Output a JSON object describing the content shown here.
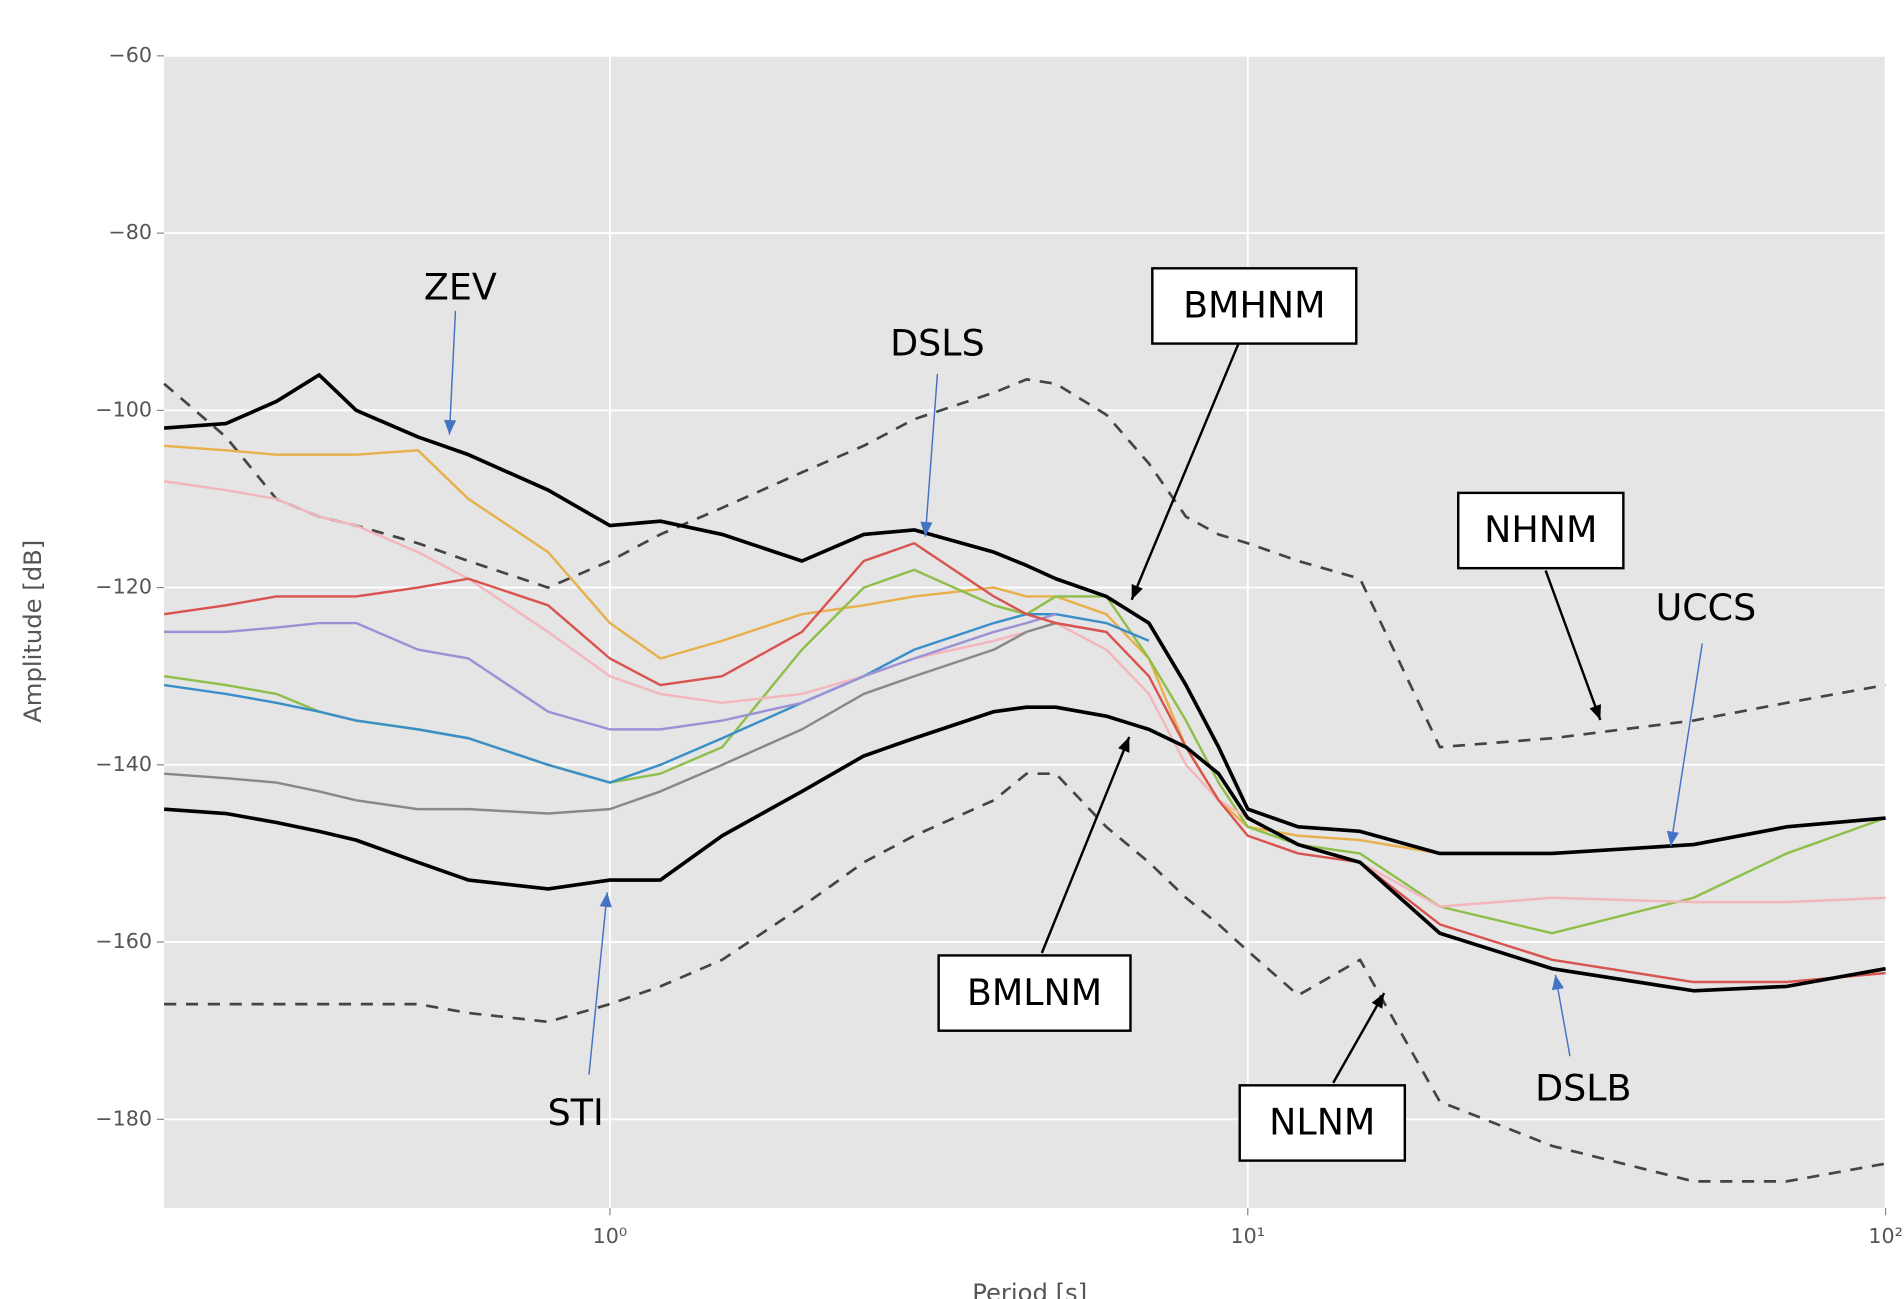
{
  "chart_data": {
    "type": "line",
    "x_label": "Period [s]",
    "y_label": "Amplitude [dB]",
    "x_scale": "log",
    "grid": true,
    "xlim": [
      0.2,
      100
    ],
    "ylim": [
      -190,
      -60
    ],
    "xticks": [
      {
        "value": 1,
        "label": "10⁰"
      },
      {
        "value": 10,
        "label": "10¹"
      },
      {
        "value": 100,
        "label": "10²"
      }
    ],
    "yticks": [
      {
        "value": -60,
        "label": "−60"
      },
      {
        "value": -80,
        "label": "−80"
      },
      {
        "value": -100,
        "label": "−100"
      },
      {
        "value": -120,
        "label": "−120"
      },
      {
        "value": -140,
        "label": "−140"
      },
      {
        "value": -160,
        "label": "−160"
      },
      {
        "value": -180,
        "label": "−180"
      }
    ],
    "x": [
      0.2,
      0.25,
      0.3,
      0.35,
      0.4,
      0.5,
      0.6,
      0.8,
      1,
      1.2,
      1.5,
      2,
      2.5,
      3,
      4,
      4.5,
      5,
      6,
      7,
      8,
      9,
      10,
      12,
      15,
      20,
      30,
      50,
      70,
      100
    ],
    "series": [
      {
        "name": "NHNM",
        "color": "#444444",
        "style": "dashed",
        "values": [
          -97,
          -103,
          -110,
          -112,
          -113,
          -115,
          -117,
          -120,
          -117,
          -114,
          -111,
          -107,
          -104,
          -101,
          -98,
          -96.5,
          -97,
          -100.5,
          -106,
          -112,
          -114,
          -115,
          -117,
          -119,
          -138,
          -137,
          -135,
          -133,
          -131
        ]
      },
      {
        "name": "NLNM",
        "color": "#444444",
        "style": "dashed",
        "values": [
          -167,
          -167,
          -167,
          -167,
          -167,
          -167,
          -168,
          -169,
          -167,
          -165,
          -162,
          -156,
          -151,
          -148,
          -144,
          -141,
          -141,
          -147,
          -151,
          -155,
          -158,
          -161,
          -166,
          -162,
          -178,
          -183,
          -187,
          -187,
          -185
        ]
      },
      {
        "color": "#e8b04a",
        "style": "solid",
        "values": [
          -104,
          -104.5,
          -105,
          -105,
          -105,
          -104.5,
          -110,
          -116,
          -124,
          -128,
          -126,
          -123,
          -122,
          -121,
          -120,
          -121,
          -121,
          -123,
          -128,
          -138,
          -144,
          -147,
          -148,
          -148.5,
          -150,
          -150,
          -149,
          -147,
          -146
        ]
      },
      {
        "color": "#8fbf4a",
        "style": "solid",
        "values": [
          -130,
          -131,
          -132,
          -134,
          -135,
          -136,
          -137,
          -140,
          -142,
          -141,
          -138,
          -127,
          -120,
          -118,
          -122,
          -123,
          -121,
          -121,
          -128,
          -135,
          -142,
          -147,
          -149,
          -150,
          -156,
          -159,
          -155,
          -150,
          -146
        ]
      },
      {
        "color": "#3a8fc8",
        "style": "solid",
        "values": [
          -131,
          -132,
          -133,
          -134,
          -135,
          -136,
          -137,
          -140,
          -142,
          -140,
          -137,
          -133,
          -130,
          -127,
          -124,
          -123,
          -123,
          -124,
          -126,
          null,
          null,
          null,
          null,
          null,
          null,
          null,
          null,
          null,
          null
        ]
      },
      {
        "color": "#f4b6bd",
        "style": "solid",
        "values": [
          -108,
          -109,
          -110,
          -112,
          -113,
          -116,
          -119,
          -125,
          -130,
          -132,
          -133,
          -132,
          -130,
          -128,
          -126,
          -125,
          -124,
          -127,
          -132,
          -140,
          -144,
          -146,
          -149,
          -151,
          -156,
          -155,
          -155.5,
          -155.5,
          -155
        ]
      },
      {
        "color": "#9b92d6",
        "style": "solid",
        "values": [
          -125,
          -125,
          -124.5,
          -124,
          -124,
          -127,
          -128,
          -134,
          -136,
          -136,
          -135,
          -133,
          -130,
          -128,
          -125,
          -124,
          -123,
          null,
          null,
          null,
          null,
          null,
          null,
          null,
          null,
          null,
          null,
          null,
          null
        ]
      },
      {
        "color": "#888888",
        "style": "solid",
        "values": [
          -141,
          -141.5,
          -142,
          -143,
          -144,
          -145,
          -145,
          -145.5,
          -145,
          -143,
          -140,
          -136,
          -132,
          -130,
          -127,
          -125,
          -124,
          -125,
          null,
          null,
          null,
          null,
          null,
          null,
          null,
          null,
          null,
          null,
          null
        ]
      },
      {
        "color": "#d9534f",
        "style": "solid",
        "values": [
          -123,
          -122,
          -121,
          -121,
          -121,
          -120,
          -119,
          -122,
          -128,
          -131,
          -130,
          -125,
          -117,
          -115,
          -121,
          -123,
          -124,
          -125,
          -130,
          -138,
          -144,
          -148,
          -150,
          -151,
          -158,
          -162,
          -164.5,
          -164.5,
          -163.5
        ]
      },
      {
        "name": "BMHNM",
        "color": "#000000",
        "style": "bold",
        "values": [
          -102,
          -101.5,
          -99,
          -96,
          -100,
          -103,
          -105,
          -109,
          -113,
          -112.5,
          -114,
          -117,
          -114,
          -113.5,
          -116,
          -117.5,
          -119,
          -121,
          -124,
          -131,
          -138,
          -145,
          -147,
          -147.5,
          -150,
          -150,
          -149,
          -147,
          -146
        ]
      },
      {
        "name": "BMLNM",
        "color": "#000000",
        "style": "bold",
        "values": [
          -145,
          -145.5,
          -146.5,
          -147.5,
          -148.5,
          -151,
          -153,
          -154,
          -153,
          -153,
          -148,
          -143,
          -139,
          -137,
          -134,
          -133.5,
          -133.5,
          -134.5,
          -136,
          -138,
          -141,
          -146,
          -149,
          -151,
          -159,
          -163,
          -165.5,
          -165,
          -163
        ]
      }
    ],
    "annotations": [
      "ZEV",
      "DSLS",
      "STI",
      "UCCS",
      "DSLB"
    ]
  }
}
